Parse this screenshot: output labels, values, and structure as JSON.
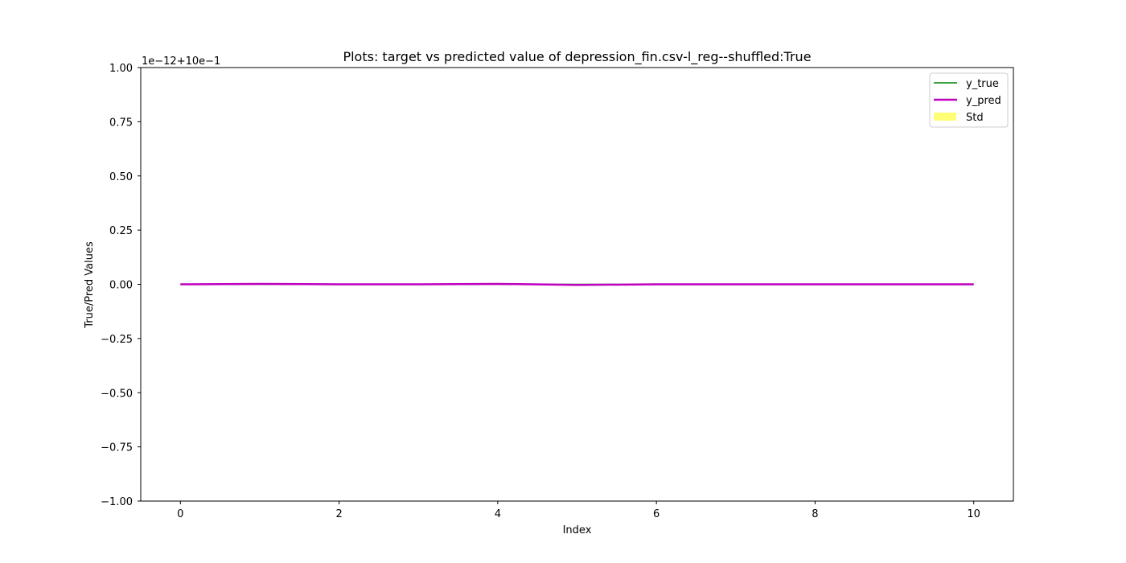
{
  "chart_data": {
    "type": "line",
    "title": "Plots: target vs predicted value of depression_fin.csv-l_reg--shuffled:True",
    "xlabel": "Index",
    "ylabel": "True/Pred Values",
    "offset_text": "1e−12+10e−1",
    "xlim": [
      -0.5,
      10.5
    ],
    "ylim": [
      -1.0,
      1.0
    ],
    "xticks": [
      0,
      2,
      4,
      6,
      8,
      10
    ],
    "yticks": [
      -1.0,
      -0.75,
      -0.5,
      -0.25,
      0.0,
      0.25,
      0.5,
      0.75,
      1.0
    ],
    "ytick_labels": [
      "−1.00",
      "−0.75",
      "−0.50",
      "−0.25",
      "0.00",
      "0.25",
      "0.50",
      "0.75",
      "1.00"
    ],
    "x": [
      0,
      1,
      2,
      3,
      4,
      5,
      6,
      7,
      8,
      9,
      10
    ],
    "series": [
      {
        "name": "y_true",
        "color": "#008000",
        "values": [
          0,
          0,
          0,
          0,
          0,
          0,
          0,
          0,
          0,
          0,
          0
        ]
      },
      {
        "name": "y_pred",
        "color": "#bf00bf",
        "values": [
          0,
          0.002,
          0,
          0,
          0.002,
          -0.003,
          0,
          0,
          0,
          0,
          0
        ]
      }
    ],
    "std": {
      "name": "Std",
      "color": "#ffff66",
      "lower": [
        0,
        0,
        0,
        0,
        0,
        0,
        0,
        0,
        0,
        0,
        0
      ],
      "upper": [
        0,
        0,
        0,
        0,
        0,
        0,
        0,
        0,
        0,
        0,
        0
      ]
    },
    "legend_position": "top-right",
    "grid": false
  }
}
